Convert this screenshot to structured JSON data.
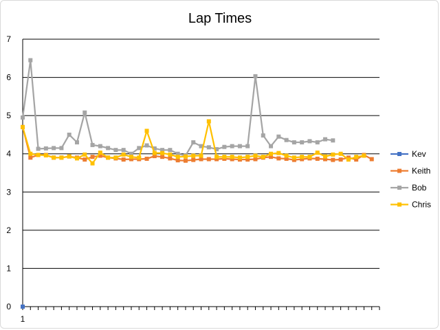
{
  "chart_data": {
    "type": "line",
    "title": "Lap Times",
    "xlabel": "",
    "ylabel": "",
    "ylim": [
      0,
      7
    ],
    "y_ticks": [
      0,
      1,
      2,
      3,
      4,
      5,
      6,
      7
    ],
    "x_range": [
      1,
      46
    ],
    "x_tick_labels": [
      {
        "x": 1,
        "label": "1"
      }
    ],
    "grid": true,
    "legend_position": "right",
    "series": [
      {
        "name": "Kev",
        "color": "#4472C4",
        "values": [
          0
        ]
      },
      {
        "name": "Keith",
        "color": "#ED7D31",
        "values": [
          4.7,
          3.9,
          3.97,
          3.97,
          3.9,
          3.9,
          3.93,
          3.9,
          3.85,
          3.92,
          3.95,
          3.9,
          3.88,
          3.85,
          3.86,
          3.86,
          3.87,
          3.94,
          3.92,
          3.88,
          3.83,
          3.82,
          3.84,
          3.86,
          3.86,
          3.86,
          3.87,
          3.86,
          3.85,
          3.85,
          3.86,
          3.9,
          3.92,
          3.88,
          3.87,
          3.84,
          3.86,
          3.88,
          3.87,
          3.86,
          3.84,
          3.85,
          3.9,
          3.85,
          3.97,
          3.86
        ]
      },
      {
        "name": "Bob",
        "color": "#A5A5A5",
        "values": [
          4.95,
          6.45,
          4.13,
          4.14,
          4.15,
          4.15,
          4.5,
          4.3,
          5.08,
          4.23,
          4.2,
          4.15,
          4.1,
          4.1,
          4.0,
          4.15,
          4.22,
          4.14,
          4.1,
          4.1,
          4.0,
          3.95,
          4.3,
          4.2,
          4.17,
          4.12,
          4.18,
          4.2,
          4.2,
          4.2,
          6.03,
          4.48,
          4.2,
          4.45,
          4.36,
          4.3,
          4.3,
          4.33,
          4.3,
          4.38,
          4.35
        ]
      },
      {
        "name": "Chris",
        "color": "#FFC000",
        "values": [
          4.7,
          4.0,
          3.97,
          3.96,
          3.9,
          3.9,
          3.93,
          3.88,
          3.98,
          3.75,
          4.03,
          3.9,
          3.9,
          3.98,
          3.92,
          3.9,
          4.6,
          4.02,
          4.02,
          3.98,
          3.92,
          3.93,
          3.95,
          3.95,
          4.85,
          3.92,
          3.92,
          3.92,
          3.9,
          3.92,
          3.95,
          3.92,
          4.0,
          4.02,
          3.95,
          3.9,
          3.92,
          3.92,
          4.03,
          3.93,
          3.98,
          4.0,
          3.85,
          3.92,
          3.95
        ]
      }
    ]
  }
}
